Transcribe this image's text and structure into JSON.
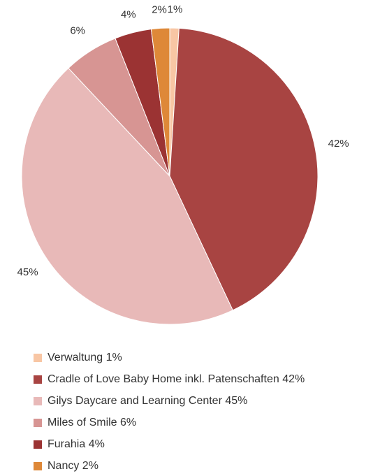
{
  "chart_data": {
    "type": "pie",
    "categories": [
      "Verwaltung 1%",
      "Cradle of Love Baby Home inkl. Patenschaften 42%",
      "Gilys Daycare and Learning Center 45%",
      "Miles of Smile 6%",
      "Furahia 4%",
      "Nancy 2%"
    ],
    "values": [
      1,
      42,
      45,
      6,
      4,
      2
    ],
    "value_labels": [
      "1%",
      "42%",
      "45%",
      "6%",
      "4%",
      "2%"
    ],
    "colors": [
      "#f8c6a4",
      "#a84442",
      "#e8b9b8",
      "#d79593",
      "#9b3333",
      "#de8838"
    ],
    "legend": "bottom-left"
  }
}
